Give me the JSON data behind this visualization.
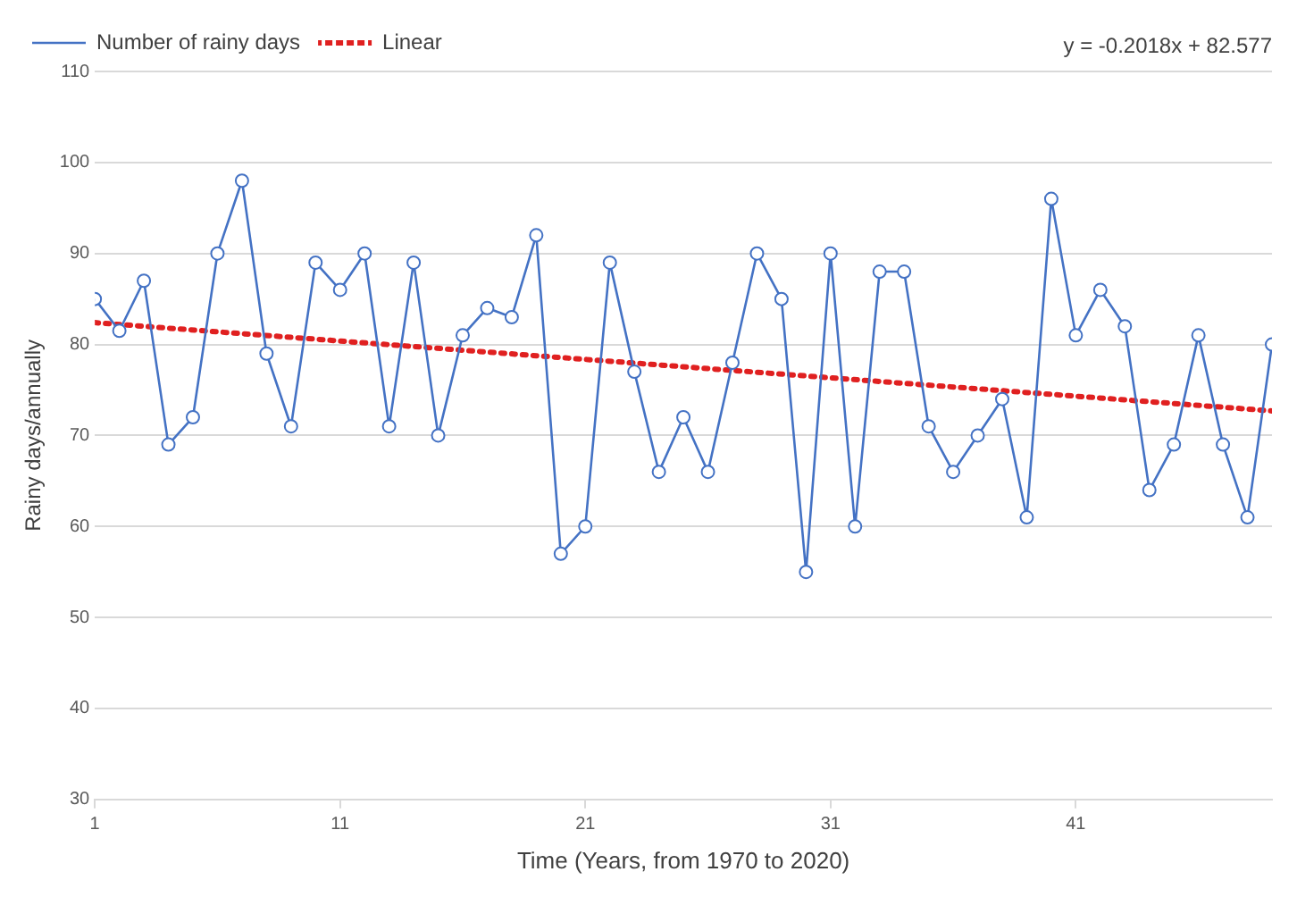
{
  "chart_data": {
    "type": "line",
    "xlabel": "Time (Years, from 1970 to 2020)",
    "ylabel": "Rainy days/annually",
    "annotations": [
      "y = -0.2018x + 82.577"
    ],
    "xlim": [
      1,
      49
    ],
    "xticks": [
      1,
      11,
      21,
      31,
      41
    ],
    "ylim": [
      30,
      110
    ],
    "yticks": [
      30,
      40,
      50,
      60,
      70,
      80,
      90,
      100,
      110
    ],
    "grid": "y",
    "legend": "top left",
    "series": [
      {
        "name": "Number of rainy days",
        "color": "#4472c4",
        "marker": "circle",
        "line_style": "solid",
        "x": [
          1,
          2,
          3,
          4,
          5,
          6,
          7,
          8,
          9,
          10,
          11,
          12,
          13,
          14,
          15,
          16,
          17,
          18,
          19,
          20,
          21,
          22,
          23,
          24,
          25,
          26,
          27,
          28,
          29,
          30,
          31,
          32,
          33,
          34,
          35,
          36,
          37,
          38,
          39,
          40,
          41,
          42,
          43,
          44,
          45,
          46,
          47,
          48,
          49
        ],
        "values": [
          85,
          81.5,
          87,
          69,
          72,
          90,
          98,
          79,
          71,
          89,
          86,
          90,
          71,
          89,
          70,
          81,
          84,
          83,
          92,
          57,
          60,
          89,
          77,
          66,
          72,
          66,
          78,
          90,
          85,
          55,
          90,
          60,
          88,
          88,
          71,
          66,
          70,
          74,
          61,
          96,
          81,
          86,
          82,
          64,
          69,
          81,
          69,
          61,
          80
        ]
      },
      {
        "name": "Linear",
        "type": "line",
        "color": "#e02020",
        "marker": "none",
        "line_style": "dotted",
        "x": [
          1,
          49
        ],
        "values": [
          82.4,
          72.7
        ]
      }
    ]
  }
}
